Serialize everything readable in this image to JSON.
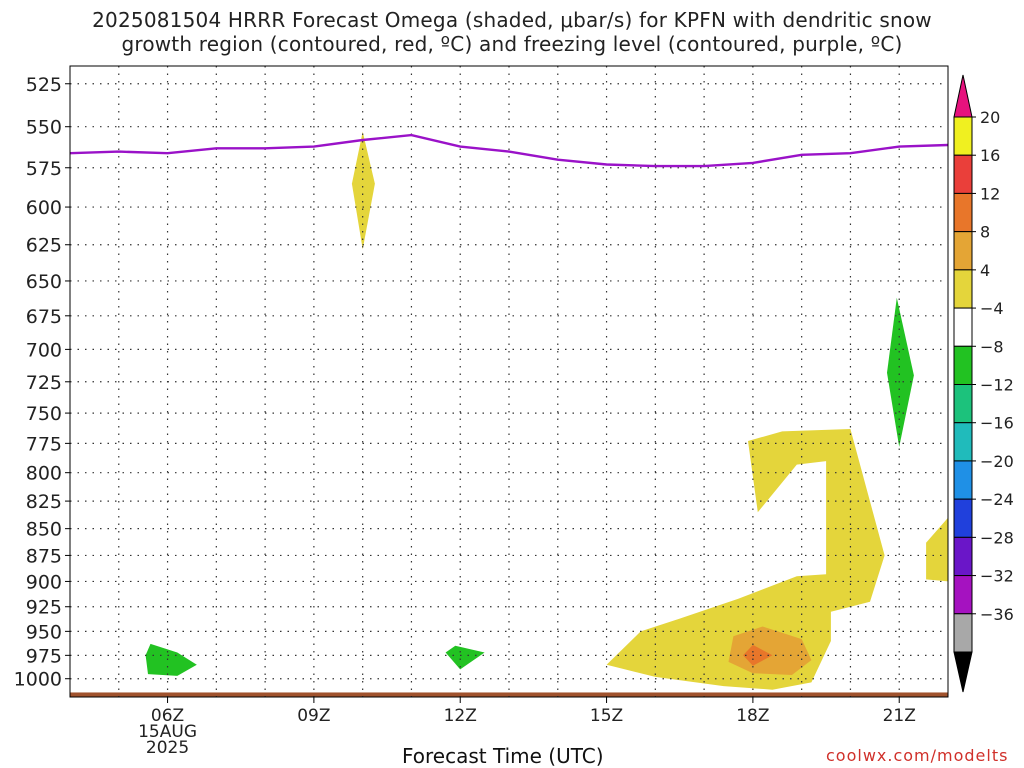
{
  "title_line1": "2025081504 HRRR Forecast Omega (shaded, μbar/s) for KPFN with dendritic snow",
  "title_line2": "growth region (contoured, red, ºC) and freezing level (contoured, purple, ºC)",
  "footer_credit": "coolwx.com/modelts",
  "chart_data": {
    "type": "contour",
    "xlabel": "Forecast Time (UTC)",
    "ylabel": "",
    "x_ticks": [
      "06Z",
      "09Z",
      "12Z",
      "15Z",
      "18Z",
      "21Z"
    ],
    "x_tick_date": [
      "15AUG",
      "2025"
    ],
    "x_range_hours": [
      4,
      22
    ],
    "y_ticks": [
      525,
      550,
      575,
      600,
      625,
      650,
      675,
      700,
      725,
      750,
      775,
      800,
      825,
      850,
      875,
      900,
      925,
      950,
      975,
      1000
    ],
    "y_range_hpa": [
      515,
      1020
    ],
    "y_scale": "log-pressure",
    "grid": true,
    "colorbar": {
      "labels": [
        "20",
        "16",
        "12",
        "8",
        "4",
        "-4",
        "-8",
        "-12",
        "-16",
        "-20",
        "-24",
        "-28",
        "-32",
        "-36"
      ],
      "colors": [
        "#f0f020",
        "#ea3f3a",
        "#e8762a",
        "#e4a535",
        "#e4d53b",
        "#ffffff",
        "#22c222",
        "#1cc27c",
        "#20bbbb",
        "#1f90e6",
        "#2040dc",
        "#6a16c8",
        "#a512c0",
        "#a8a8a8"
      ],
      "top_arrow_color": "#e6127d",
      "bottom_arrow_color": "#000000"
    },
    "freezing_level_color": "#9a12c8",
    "freezing_level_hpa": [
      {
        "x": 4,
        "p": 566
      },
      {
        "x": 5,
        "p": 565
      },
      {
        "x": 6,
        "p": 566
      },
      {
        "x": 7,
        "p": 563
      },
      {
        "x": 8,
        "p": 563
      },
      {
        "x": 9,
        "p": 562
      },
      {
        "x": 10,
        "p": 558
      },
      {
        "x": 11,
        "p": 555
      },
      {
        "x": 12,
        "p": 562
      },
      {
        "x": 13,
        "p": 565
      },
      {
        "x": 14,
        "p": 570
      },
      {
        "x": 15,
        "p": 573
      },
      {
        "x": 16,
        "p": 574
      },
      {
        "x": 17,
        "p": 574
      },
      {
        "x": 18,
        "p": 572
      },
      {
        "x": 19,
        "p": 567
      },
      {
        "x": 20,
        "p": 566
      },
      {
        "x": 21,
        "p": 562
      },
      {
        "x": 22,
        "p": 561
      }
    ],
    "omega_regions": [
      {
        "name": "positive-4-8",
        "color": "#e4d53b",
        "points": [
          [
            10,
            553
          ],
          [
            10.25,
            585
          ],
          [
            10,
            628
          ],
          [
            9.78,
            585
          ]
        ]
      },
      {
        "name": "negative-4-8",
        "color": "#22c222",
        "points": [
          [
            20.95,
            662
          ],
          [
            21.3,
            720
          ],
          [
            21.0,
            778
          ],
          [
            20.75,
            718
          ]
        ]
      },
      {
        "name": "negative-4-8",
        "color": "#22c222",
        "points": [
          [
            5.65,
            963
          ],
          [
            6.2,
            972
          ],
          [
            6.6,
            985
          ],
          [
            6.2,
            997
          ],
          [
            5.6,
            995
          ],
          [
            5.55,
            975
          ]
        ]
      },
      {
        "name": "negative-4-8",
        "color": "#22c222",
        "points": [
          [
            11.9,
            965
          ],
          [
            12.5,
            972
          ],
          [
            12.0,
            990
          ],
          [
            11.7,
            972
          ]
        ]
      },
      {
        "name": "positive-4-8",
        "color": "#e4d53b",
        "points": [
          [
            21.55,
            863
          ],
          [
            22,
            840
          ],
          [
            22,
            900
          ],
          [
            21.55,
            898
          ]
        ]
      },
      {
        "name": "positive-4-8",
        "color": "#e4d53b",
        "points": [
          [
            15,
            985
          ],
          [
            15.7,
            950
          ],
          [
            16.5,
            937
          ],
          [
            17.7,
            917
          ],
          [
            18.9,
            895
          ],
          [
            19.5,
            893
          ],
          [
            19.5,
            790
          ],
          [
            18.9,
            793
          ],
          [
            18.1,
            835
          ],
          [
            17.9,
            773
          ],
          [
            18.6,
            765
          ],
          [
            20.0,
            763
          ],
          [
            20.7,
            875
          ],
          [
            20.4,
            920
          ],
          [
            19.6,
            930
          ],
          [
            19.6,
            960
          ],
          [
            19.2,
            1004
          ],
          [
            18.4,
            1012
          ],
          [
            17.4,
            1008
          ],
          [
            16.0,
            998
          ]
        ]
      },
      {
        "name": "positive-8-12",
        "color": "#e4a535",
        "points": [
          [
            17.6,
            955
          ],
          [
            18.2,
            945
          ],
          [
            19.0,
            958
          ],
          [
            19.2,
            980
          ],
          [
            18.8,
            996
          ],
          [
            18.0,
            994
          ],
          [
            17.5,
            982
          ]
        ]
      },
      {
        "name": "positive-12-16",
        "color": "#e8762a",
        "points": [
          [
            17.8,
            975
          ],
          [
            18.0,
            964
          ],
          [
            18.4,
            975
          ],
          [
            18.0,
            986
          ]
        ]
      }
    ],
    "terrain_hpa": 1015
  }
}
